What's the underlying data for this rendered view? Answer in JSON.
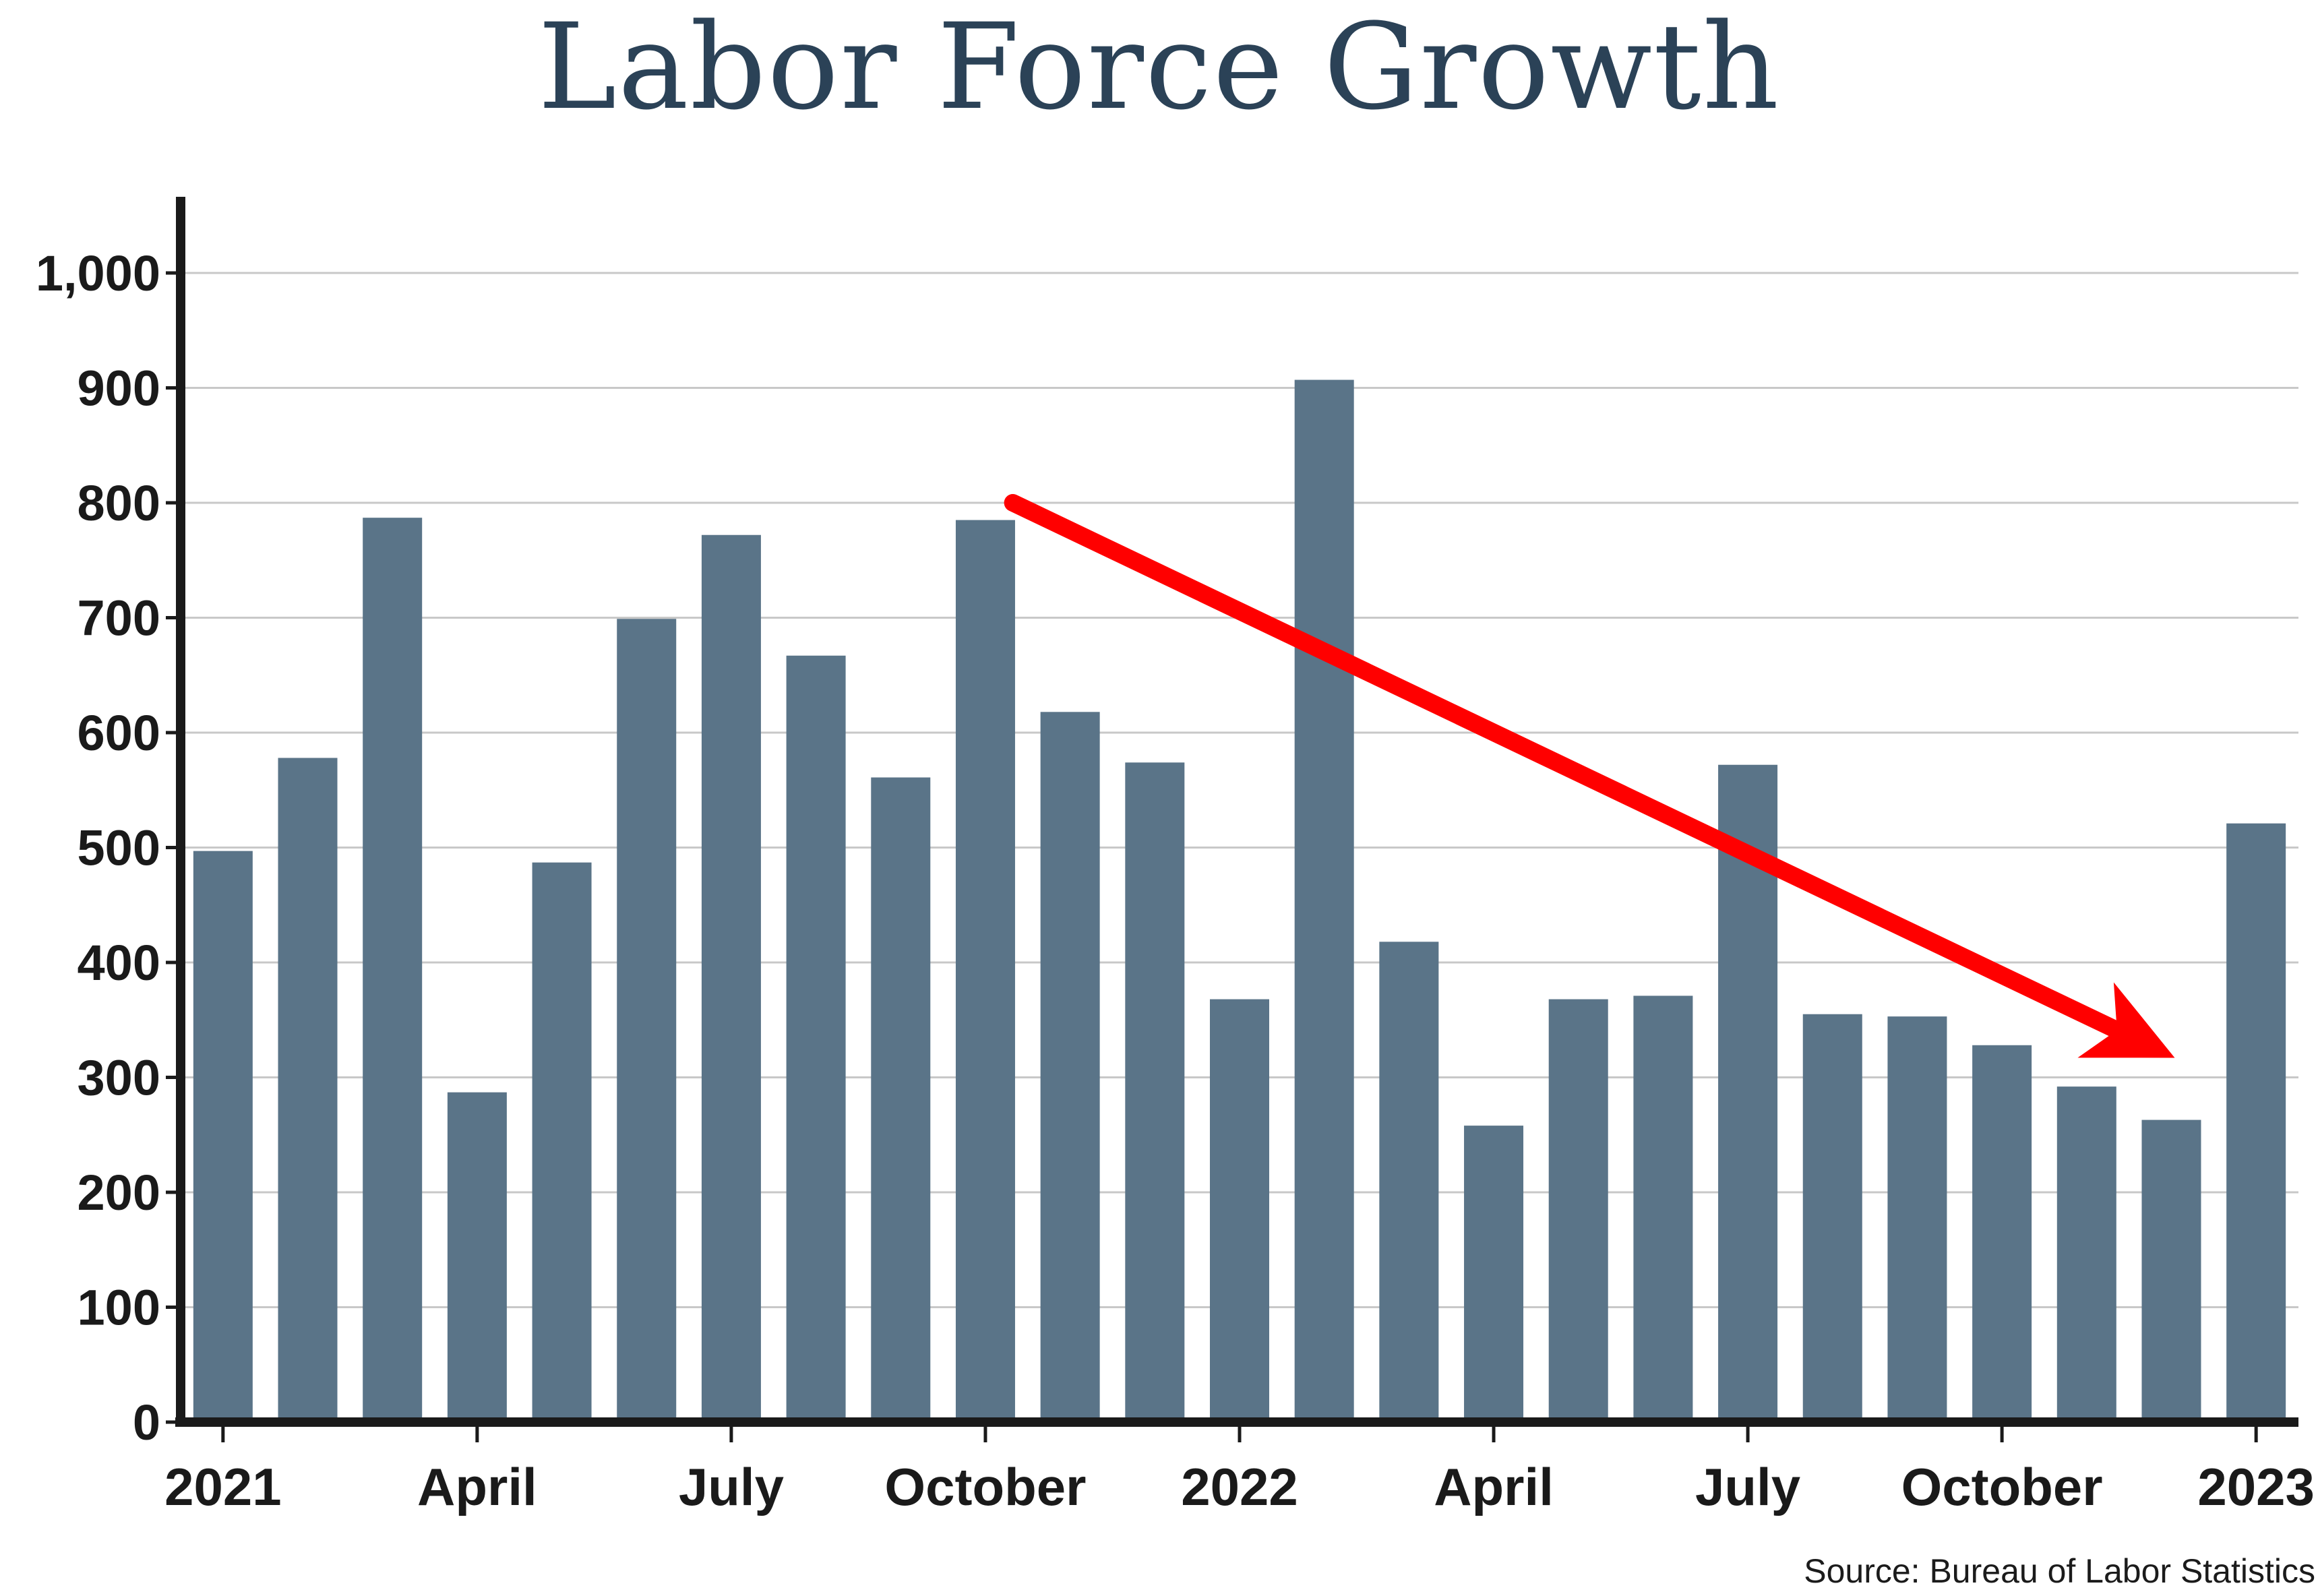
{
  "chart_data": {
    "type": "bar",
    "title": "Labor Force Growth",
    "xlabel": "",
    "ylabel": "",
    "ylim": [
      0,
      1050
    ],
    "yticks": [
      0,
      100,
      200,
      300,
      400,
      500,
      600,
      700,
      800,
      900,
      1000
    ],
    "ytick_labels": [
      "0",
      "100",
      "200",
      "300",
      "400",
      "500",
      "600",
      "700",
      "800",
      "900",
      "1,000"
    ],
    "grid": true,
    "x": [
      "2021-01",
      "2021-02",
      "2021-03",
      "2021-04",
      "2021-05",
      "2021-06",
      "2021-07",
      "2021-08",
      "2021-09",
      "2021-10",
      "2021-11",
      "2021-12",
      "2022-01",
      "2022-02",
      "2022-03",
      "2022-04",
      "2022-05",
      "2022-06",
      "2022-07",
      "2022-08",
      "2022-09",
      "2022-10",
      "2022-11",
      "2022-12",
      "2023-01"
    ],
    "values": [
      497,
      578,
      787,
      287,
      487,
      699,
      772,
      667,
      561,
      785,
      618,
      574,
      368,
      907,
      418,
      258,
      368,
      371,
      572,
      355,
      353,
      328,
      292,
      263,
      521
    ],
    "xtick_labels": [
      {
        "x": "2021-01",
        "label": "2021"
      },
      {
        "x": "2021-04",
        "label": "April"
      },
      {
        "x": "2021-07",
        "label": "July"
      },
      {
        "x": "2021-10",
        "label": "October"
      },
      {
        "x": "2022-01",
        "label": "2022"
      },
      {
        "x": "2022-04",
        "label": "April"
      },
      {
        "x": "2022-07",
        "label": "July"
      },
      {
        "x": "2022-10",
        "label": "October"
      },
      {
        "x": "2023-01",
        "label": "2023"
      }
    ],
    "annotations": [
      {
        "type": "arrow",
        "color": "#ff0000",
        "from": {
          "x": "2021-11",
          "y": 800
        },
        "to": {
          "x": "2022-12",
          "y": 310
        }
      }
    ],
    "colors": {
      "bar": "#5a7488",
      "grid": "#c8c8c8",
      "axis": "#1a1a1a",
      "title": "#2b4257",
      "arrow": "#ff0000"
    }
  },
  "source": "Source: Bureau of Labor Statistics"
}
